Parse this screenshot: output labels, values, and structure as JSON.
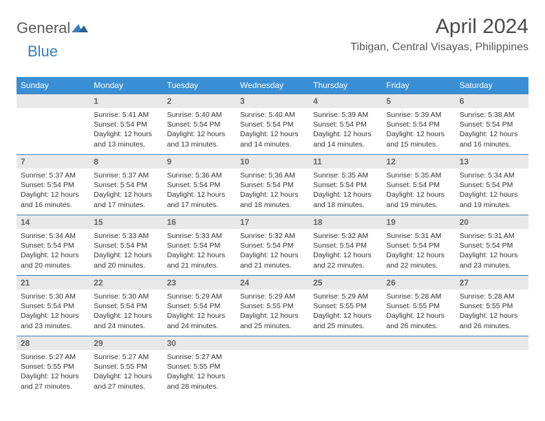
{
  "brand": {
    "part1": "General",
    "part2": "Blue"
  },
  "title": "April 2024",
  "location": "Tibigan, Central Visayas, Philippines",
  "colors": {
    "header_bg": "#3a8fd4",
    "border": "#3a7fb8",
    "daynum_bg": "#e8e8e8",
    "brand_gray": "#5a5a5a",
    "brand_blue": "#3a7fb8"
  },
  "dayHeaders": [
    "Sunday",
    "Monday",
    "Tuesday",
    "Wednesday",
    "Thursday",
    "Friday",
    "Saturday"
  ],
  "weeks": [
    [
      {
        "n": "",
        "sr": "",
        "ss": "",
        "d": ""
      },
      {
        "n": "1",
        "sr": "5:41 AM",
        "ss": "5:54 PM",
        "d": "12 hours and 13 minutes."
      },
      {
        "n": "2",
        "sr": "5:40 AM",
        "ss": "5:54 PM",
        "d": "12 hours and 13 minutes."
      },
      {
        "n": "3",
        "sr": "5:40 AM",
        "ss": "5:54 PM",
        "d": "12 hours and 14 minutes."
      },
      {
        "n": "4",
        "sr": "5:39 AM",
        "ss": "5:54 PM",
        "d": "12 hours and 14 minutes."
      },
      {
        "n": "5",
        "sr": "5:39 AM",
        "ss": "5:54 PM",
        "d": "12 hours and 15 minutes."
      },
      {
        "n": "6",
        "sr": "5:38 AM",
        "ss": "5:54 PM",
        "d": "12 hours and 16 minutes."
      }
    ],
    [
      {
        "n": "7",
        "sr": "5:37 AM",
        "ss": "5:54 PM",
        "d": "12 hours and 16 minutes."
      },
      {
        "n": "8",
        "sr": "5:37 AM",
        "ss": "5:54 PM",
        "d": "12 hours and 17 minutes."
      },
      {
        "n": "9",
        "sr": "5:36 AM",
        "ss": "5:54 PM",
        "d": "12 hours and 17 minutes."
      },
      {
        "n": "10",
        "sr": "5:36 AM",
        "ss": "5:54 PM",
        "d": "12 hours and 18 minutes."
      },
      {
        "n": "11",
        "sr": "5:35 AM",
        "ss": "5:54 PM",
        "d": "12 hours and 18 minutes."
      },
      {
        "n": "12",
        "sr": "5:35 AM",
        "ss": "5:54 PM",
        "d": "12 hours and 19 minutes."
      },
      {
        "n": "13",
        "sr": "5:34 AM",
        "ss": "5:54 PM",
        "d": "12 hours and 19 minutes."
      }
    ],
    [
      {
        "n": "14",
        "sr": "5:34 AM",
        "ss": "5:54 PM",
        "d": "12 hours and 20 minutes."
      },
      {
        "n": "15",
        "sr": "5:33 AM",
        "ss": "5:54 PM",
        "d": "12 hours and 20 minutes."
      },
      {
        "n": "16",
        "sr": "5:33 AM",
        "ss": "5:54 PM",
        "d": "12 hours and 21 minutes."
      },
      {
        "n": "17",
        "sr": "5:32 AM",
        "ss": "5:54 PM",
        "d": "12 hours and 21 minutes."
      },
      {
        "n": "18",
        "sr": "5:32 AM",
        "ss": "5:54 PM",
        "d": "12 hours and 22 minutes."
      },
      {
        "n": "19",
        "sr": "5:31 AM",
        "ss": "5:54 PM",
        "d": "12 hours and 22 minutes."
      },
      {
        "n": "20",
        "sr": "5:31 AM",
        "ss": "5:54 PM",
        "d": "12 hours and 23 minutes."
      }
    ],
    [
      {
        "n": "21",
        "sr": "5:30 AM",
        "ss": "5:54 PM",
        "d": "12 hours and 23 minutes."
      },
      {
        "n": "22",
        "sr": "5:30 AM",
        "ss": "5:54 PM",
        "d": "12 hours and 24 minutes."
      },
      {
        "n": "23",
        "sr": "5:29 AM",
        "ss": "5:54 PM",
        "d": "12 hours and 24 minutes."
      },
      {
        "n": "24",
        "sr": "5:29 AM",
        "ss": "5:55 PM",
        "d": "12 hours and 25 minutes."
      },
      {
        "n": "25",
        "sr": "5:29 AM",
        "ss": "5:55 PM",
        "d": "12 hours and 25 minutes."
      },
      {
        "n": "26",
        "sr": "5:28 AM",
        "ss": "5:55 PM",
        "d": "12 hours and 26 minutes."
      },
      {
        "n": "27",
        "sr": "5:28 AM",
        "ss": "5:55 PM",
        "d": "12 hours and 26 minutes."
      }
    ],
    [
      {
        "n": "28",
        "sr": "5:27 AM",
        "ss": "5:55 PM",
        "d": "12 hours and 27 minutes."
      },
      {
        "n": "29",
        "sr": "5:27 AM",
        "ss": "5:55 PM",
        "d": "12 hours and 27 minutes."
      },
      {
        "n": "30",
        "sr": "5:27 AM",
        "ss": "5:55 PM",
        "d": "12 hours and 28 minutes."
      },
      {
        "n": "",
        "sr": "",
        "ss": "",
        "d": ""
      },
      {
        "n": "",
        "sr": "",
        "ss": "",
        "d": ""
      },
      {
        "n": "",
        "sr": "",
        "ss": "",
        "d": ""
      },
      {
        "n": "",
        "sr": "",
        "ss": "",
        "d": ""
      }
    ]
  ]
}
